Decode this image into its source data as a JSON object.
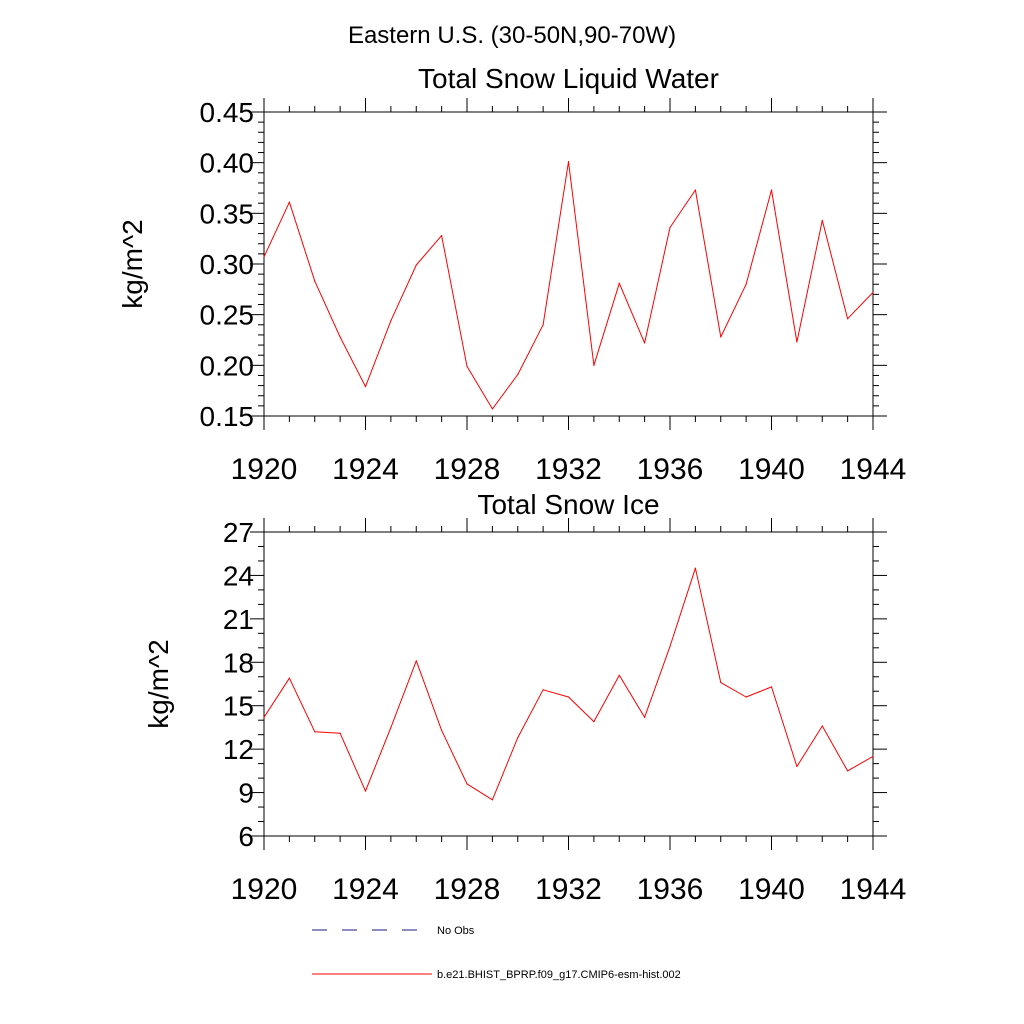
{
  "figure_title": "Eastern U.S. (30-50N,90-70W)",
  "legend": [
    {
      "label": "No Obs",
      "color": "#1a1a80",
      "style": "dashed"
    },
    {
      "label": "b.e21.BHIST_BPRP.f09_g17.CMIP6-esm-hist.002",
      "color": "#ff0000",
      "style": "solid"
    }
  ],
  "chart_data": [
    {
      "type": "line",
      "title": "Total Snow Liquid Water",
      "xlabel": "",
      "ylabel": "kg/m^2",
      "xlim": [
        1920,
        1944
      ],
      "ylim": [
        0.15,
        0.45
      ],
      "xticks": [
        "1920",
        "1924",
        "1928",
        "1932",
        "1936",
        "1940",
        "1944"
      ],
      "yticks": [
        "0.15",
        "0.20",
        "0.25",
        "0.30",
        "0.35",
        "0.40",
        "0.45"
      ],
      "grid": false,
      "series": [
        {
          "color": "#ff0000",
          "x": [
            1920,
            1921,
            1922,
            1923,
            1924,
            1925,
            1926,
            1927,
            1928,
            1929,
            1930,
            1931,
            1932,
            1933,
            1934,
            1935,
            1936,
            1937,
            1938,
            1939,
            1940,
            1941,
            1942,
            1943,
            1944
          ],
          "values": [
            0.307,
            0.361,
            0.283,
            0.228,
            0.179,
            0.244,
            0.299,
            0.328,
            0.199,
            0.157,
            0.191,
            0.24,
            0.401,
            0.2,
            0.281,
            0.222,
            0.336,
            0.373,
            0.228,
            0.28,
            0.373,
            0.223,
            0.343,
            0.246,
            0.272
          ]
        }
      ]
    },
    {
      "type": "line",
      "title": "Total Snow Ice",
      "xlabel": "",
      "ylabel": "kg/m^2",
      "xlim": [
        1920,
        1944
      ],
      "ylim": [
        6,
        27
      ],
      "xticks": [
        "1920",
        "1924",
        "1928",
        "1932",
        "1936",
        "1940",
        "1944"
      ],
      "yticks": [
        "6",
        "9",
        "12",
        "15",
        "18",
        "21",
        "24",
        "27"
      ],
      "grid": false,
      "series": [
        {
          "color": "#ff0000",
          "x": [
            1920,
            1921,
            1922,
            1923,
            1924,
            1925,
            1926,
            1927,
            1928,
            1929,
            1930,
            1931,
            1932,
            1933,
            1934,
            1935,
            1936,
            1937,
            1938,
            1939,
            1940,
            1941,
            1942,
            1943,
            1944
          ],
          "values": [
            14.2,
            16.9,
            13.2,
            13.1,
            9.1,
            13.5,
            18.1,
            13.3,
            9.6,
            8.5,
            12.8,
            16.1,
            15.6,
            13.9,
            17.1,
            14.2,
            19.1,
            24.5,
            16.6,
            15.6,
            16.3,
            10.8,
            13.6,
            10.5,
            11.5
          ]
        }
      ]
    }
  ]
}
